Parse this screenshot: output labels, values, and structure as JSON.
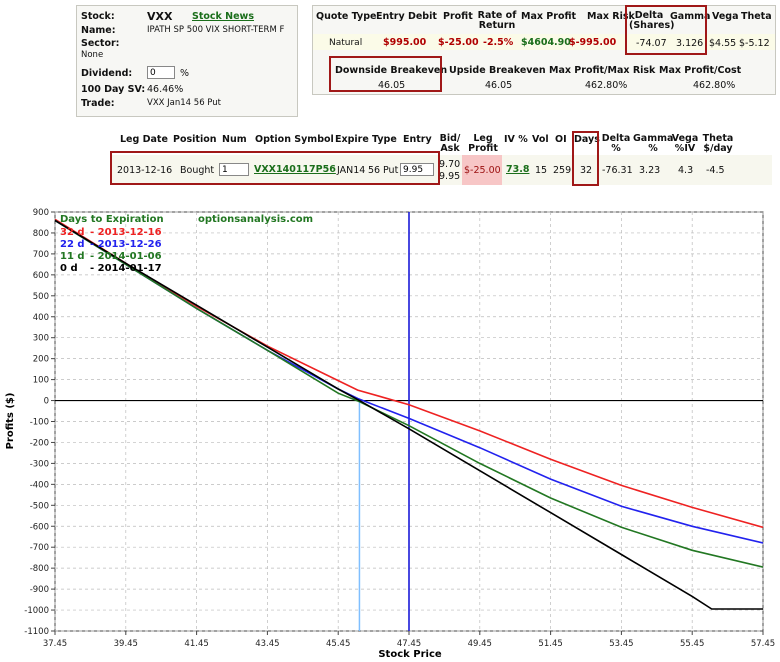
{
  "stock_panel": {
    "stock_label": "Stock:",
    "stock_value": "VXX",
    "stock_news": "Stock News",
    "name_label": "Name:",
    "name_value": "IPATH SP 500 VIX SHORT-TERM F",
    "sector_label": "Sector:",
    "sector_value": "None",
    "dividend_label": "Dividend:",
    "dividend_value": "0",
    "dividend_unit": "%",
    "sv_label": "100 Day SV:",
    "sv_value": "46.46%",
    "trade_label": "Trade:",
    "trade_value": "VXX Jan14 56 Put"
  },
  "quote_panel": {
    "headers": [
      "Quote Type",
      "Entry Debit",
      "Profit",
      "Rate of Return",
      "Max Profit",
      "Max Risk",
      "Delta (Shares)",
      "Gamma",
      "Vega",
      "Theta"
    ],
    "row": [
      "Natural",
      "$995.00",
      "$-25.00",
      "-2.5%",
      "$4604.90",
      "$-995.00",
      "-74.07",
      "3.126",
      "$4.55",
      "$-5.12"
    ],
    "headers2": [
      "Downside Breakeven",
      "Upside Breakeven",
      "Max Profit/Max Risk",
      "Max Profit/Cost"
    ],
    "row2": [
      "46.05",
      "46.05",
      "462.80%",
      "462.80%"
    ]
  },
  "legs_table": {
    "headers": [
      "Leg Date",
      "Position",
      "Num",
      "Option Symbol",
      "Expire",
      "Type",
      "Entry",
      "Bid/ Ask",
      "Leg Profit",
      "IV %",
      "Vol",
      "OI",
      "Days",
      "Delta %",
      "Gamma %",
      "Vega %IV",
      "Theta $/day"
    ],
    "row": {
      "leg_date": "2013-12-16",
      "position": "Bought",
      "num": "1",
      "symbol": "VXX140117P56",
      "expire": "JAN14",
      "strike": "56",
      "type": "Put",
      "entry": "9.95",
      "bid": "9.70",
      "ask": "9.95",
      "leg_profit": "$-25.00",
      "iv": "73.8",
      "vol": "15",
      "oi": "259",
      "days": "32",
      "delta": "-76.31",
      "gamma": "3.23",
      "vega": "4.3",
      "theta": "-4.5"
    }
  },
  "chart_data": {
    "type": "line",
    "title": "",
    "watermark": "optionsanalysis.com",
    "legend_title": "Days to Expiration",
    "legend_position": "top-left",
    "xlabel": "Stock Price",
    "ylabel": "Profits ($)",
    "xlim": [
      37.45,
      57.45
    ],
    "ylim": [
      -1100,
      900
    ],
    "xticks": [
      "37.45",
      "39.45",
      "41.45",
      "43.45",
      "45.45",
      "47.45",
      "49.45",
      "51.45",
      "53.45",
      "55.45",
      "57.45"
    ],
    "yticks": [
      "900",
      "800",
      "700",
      "600",
      "500",
      "400",
      "300",
      "200",
      "100",
      "0",
      "-100",
      "-200",
      "-300",
      "-400",
      "-500",
      "-600",
      "-700",
      "-800",
      "-900",
      "-1000",
      "-1100"
    ],
    "grid": true,
    "current_price": 47.45,
    "breakeven": 46.05,
    "series": [
      {
        "name": "32 d",
        "date": "2013-12-16",
        "color": "#ee2222",
        "x": [
          37.45,
          39.45,
          41.45,
          43.45,
          45.45,
          46.0,
          47.45,
          49.45,
          51.45,
          53.45,
          55.45,
          57.45
        ],
        "y": [
          865,
          655,
          450,
          260,
          95,
          50,
          -20,
          -145,
          -280,
          -405,
          -510,
          -605
        ]
      },
      {
        "name": "22 d",
        "date": "2013-12-26",
        "color": "#2222ee",
        "x": [
          37.45,
          39.45,
          41.45,
          43.45,
          45.45,
          46.0,
          47.45,
          49.45,
          51.45,
          53.45,
          55.45,
          57.45
        ],
        "y": [
          860,
          650,
          440,
          240,
          55,
          10,
          -85,
          -225,
          -375,
          -505,
          -600,
          -680
        ]
      },
      {
        "name": "11 d",
        "date": "2014-01-06",
        "color": "#227722",
        "x": [
          37.45,
          39.45,
          41.45,
          43.45,
          45.45,
          46.05,
          47.45,
          49.45,
          51.45,
          53.45,
          55.45,
          57.45
        ],
        "y": [
          860,
          650,
          440,
          240,
          35,
          -5,
          -120,
          -300,
          -465,
          -605,
          -715,
          -795
        ]
      },
      {
        "name": "0 d",
        "date": "2014-01-17",
        "color": "#000000",
        "x": [
          37.45,
          39.45,
          41.45,
          43.45,
          45.45,
          46.05,
          47.45,
          49.45,
          51.45,
          53.45,
          55.45,
          56.0,
          57.45
        ],
        "y": [
          860,
          655,
          455,
          255,
          55,
          0,
          -135,
          -335,
          -535,
          -735,
          -935,
          -995,
          -995
        ]
      }
    ]
  }
}
